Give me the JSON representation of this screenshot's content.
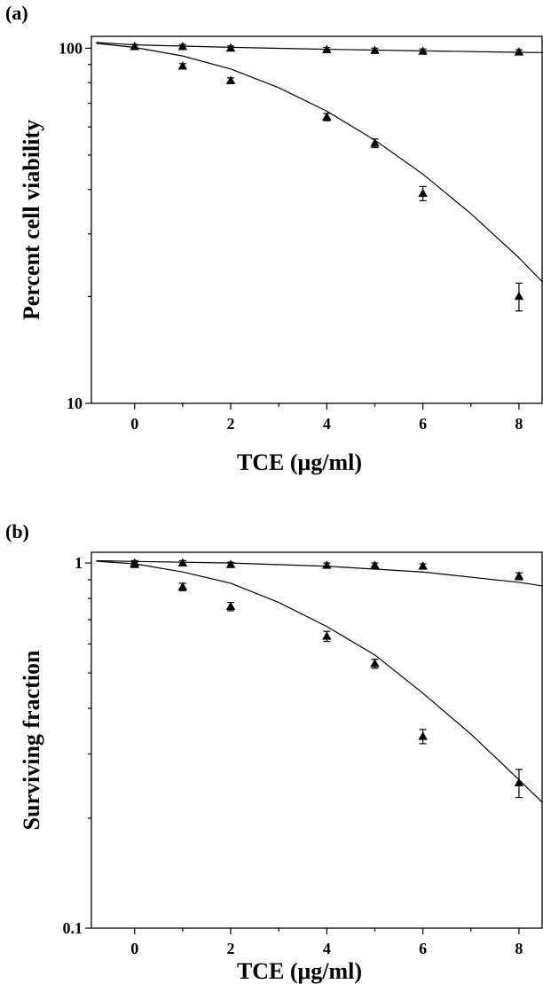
{
  "chart_data": [
    {
      "panel_label": "(a)",
      "type": "scatter",
      "xlabel": "TCE (μg/ml)",
      "ylabel": "Percent cell viability",
      "xlim": [
        -0.9,
        8.5
      ],
      "ylim": [
        10,
        108
      ],
      "yscale": "log",
      "x_ticks": [
        0,
        2,
        4,
        6,
        8
      ],
      "x_minor_ticks": [
        1,
        3,
        5,
        7
      ],
      "y_ticks": [
        10,
        100
      ],
      "y_tick_labels": [
        "10",
        "100"
      ],
      "grid": false,
      "series": [
        {
          "points": [
            {
              "x": 0,
              "y": 101,
              "err": 1.5
            },
            {
              "x": 1,
              "y": 101,
              "err": 1.5
            },
            {
              "x": 2,
              "y": 100,
              "err": 1.5
            },
            {
              "x": 4,
              "y": 99,
              "err": 1.5
            },
            {
              "x": 5,
              "y": 98.5,
              "err": 1.5
            },
            {
              "x": 6,
              "y": 98,
              "err": 1.5
            },
            {
              "x": 8,
              "y": 97.5,
              "err": 1.5
            }
          ],
          "fit": {
            "x": [
              -0.8,
              0,
              2,
              4,
              6,
              8,
              8.5
            ],
            "y": [
              103.8,
              102.2,
              100.6,
              99.3,
              98.3,
              97.4,
              97.2
            ]
          }
        },
        {
          "points": [
            {
              "x": 0,
              "y": 101,
              "err": 1.5
            },
            {
              "x": 1,
              "y": 89,
              "err": 1.5
            },
            {
              "x": 2,
              "y": 81,
              "err": 1.5
            },
            {
              "x": 4,
              "y": 64,
              "err": 1.5
            },
            {
              "x": 5,
              "y": 54,
              "err": 1.5
            },
            {
              "x": 6,
              "y": 39,
              "err": 1.8
            },
            {
              "x": 8,
              "y": 20,
              "err": 1.8
            }
          ],
          "fit": {
            "x": [
              -0.8,
              0,
              1,
              2,
              3,
              4,
              5,
              6,
              7,
              8,
              8.5
            ],
            "y": [
              103.2,
              100.5,
              95.1,
              87.4,
              77.4,
              66.5,
              55.1,
              44.2,
              34.2,
              25.7,
              21.9
            ]
          }
        }
      ]
    },
    {
      "panel_label": "(b)",
      "type": "scatter",
      "xlabel": "TCE (μg/ml)",
      "ylabel": "Surviving fraction",
      "xlim": [
        -0.9,
        8.5
      ],
      "ylim": [
        0.1,
        1.07
      ],
      "yscale": "log",
      "x_ticks": [
        0,
        2,
        4,
        6,
        8
      ],
      "x_minor_ticks": [
        1,
        3,
        5,
        7
      ],
      "y_ticks": [
        0.1,
        1
      ],
      "y_tick_labels": [
        "0.1",
        "1"
      ],
      "grid": false,
      "series": [
        {
          "points": [
            {
              "x": 0,
              "y": 1.0,
              "err": 0.015
            },
            {
              "x": 1,
              "y": 1.0,
              "err": 0.015
            },
            {
              "x": 2,
              "y": 0.99,
              "err": 0.015
            },
            {
              "x": 4,
              "y": 0.985,
              "err": 0.015
            },
            {
              "x": 5,
              "y": 0.985,
              "err": 0.015
            },
            {
              "x": 6,
              "y": 0.98,
              "err": 0.015
            },
            {
              "x": 8,
              "y": 0.92,
              "err": 0.02
            }
          ],
          "fit": {
            "x": [
              -0.8,
              0,
              2,
              4,
              6,
              8,
              8.5
            ],
            "y": [
              1.015,
              1.01,
              1.0,
              0.98,
              0.945,
              0.885,
              0.865
            ]
          }
        },
        {
          "points": [
            {
              "x": 0,
              "y": 0.99,
              "err": 0.015
            },
            {
              "x": 1,
              "y": 0.86,
              "err": 0.02
            },
            {
              "x": 2,
              "y": 0.76,
              "err": 0.02
            },
            {
              "x": 4,
              "y": 0.63,
              "err": 0.02
            },
            {
              "x": 5,
              "y": 0.53,
              "err": 0.015
            },
            {
              "x": 6,
              "y": 0.335,
              "err": 0.015
            },
            {
              "x": 8,
              "y": 0.25,
              "err": 0.022
            }
          ],
          "fit": {
            "x": [
              -0.8,
              0,
              1,
              2,
              3,
              4,
              5,
              6,
              7,
              8,
              8.5
            ],
            "y": [
              1.012,
              0.995,
              0.945,
              0.88,
              0.78,
              0.67,
              0.56,
              0.44,
              0.34,
              0.255,
              0.22
            ]
          }
        }
      ]
    }
  ]
}
